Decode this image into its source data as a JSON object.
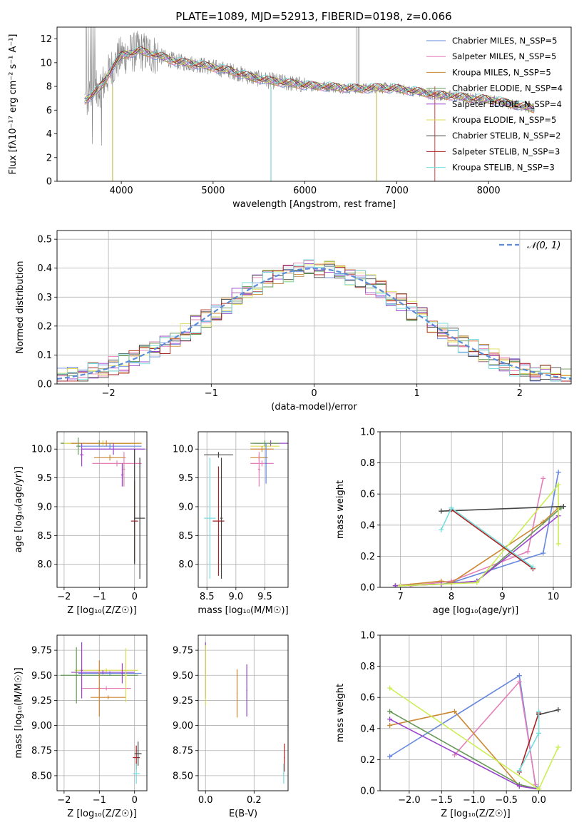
{
  "title": "PLATE=1089, MJD=52913, FIBERID=0198, z=0.066",
  "chart_data": [
    {
      "id": "spectrum",
      "type": "line",
      "xlabel": "wavelength [Angstrom, rest frame]",
      "ylabel": "Flux [fλ10⁻¹⁷ erg cm⁻² s⁻¹ A⁻¹]",
      "xlim": [
        3300,
        8900
      ],
      "ylim": [
        0,
        13
      ],
      "xticks": [
        "4000",
        "5000",
        "6000",
        "7000",
        "8000"
      ],
      "yticks": [
        "0",
        "2",
        "4",
        "6",
        "8",
        "10",
        "12"
      ],
      "grid": false,
      "legend_position": "top-right",
      "continuum": {
        "x": [
          3600,
          3700,
          3800,
          3900,
          4000,
          4200,
          4400,
          4600,
          4800,
          5000,
          5200,
          5400,
          5600,
          5800,
          6000,
          6200,
          6400,
          6600,
          6800,
          7000,
          7200,
          7400,
          7600,
          7800,
          8000,
          8200,
          8400,
          8500
        ],
        "y": [
          6.8,
          7.4,
          8.2,
          9.6,
          10.6,
          11.0,
          10.6,
          10.1,
          9.9,
          9.6,
          9.3,
          8.8,
          8.5,
          8.3,
          8.1,
          8.0,
          7.9,
          7.8,
          7.9,
          7.8,
          7.6,
          7.3,
          7.2,
          7.0,
          6.9,
          6.6,
          6.3,
          6.1
        ]
      },
      "series": [
        {
          "name": "Chabrier MILES, N_SSP=5",
          "color": "#6688dd"
        },
        {
          "name": "Salpeter MILES, N_SSP=5",
          "color": "#e67fb8"
        },
        {
          "name": "Kroupa MILES, N_SSP=5",
          "color": "#cc8833"
        },
        {
          "name": "Chabrier ELODIE, N_SSP=4",
          "color": "#669955"
        },
        {
          "name": "Salpeter ELODIE, N_SSP=4",
          "color": "#9944cc"
        },
        {
          "name": "Kroupa ELODIE, N_SSP=5",
          "color": "#dddd55"
        },
        {
          "name": "Chabrier STELIB, N_SSP=2",
          "color": "#444444"
        },
        {
          "name": "Salpeter STELIB, N_SSP=3",
          "color": "#aa2222"
        },
        {
          "name": "Kroupa STELIB, N_SSP=3",
          "color": "#77dddd"
        }
      ]
    },
    {
      "id": "residuals",
      "type": "histogram",
      "xlabel": "(data-model)/error",
      "ylabel": "Normed distribution",
      "xlim": [
        -2.5,
        2.5
      ],
      "ylim": [
        0,
        0.53
      ],
      "xticks": [
        "−2",
        "−1",
        "0",
        "1",
        "2"
      ],
      "yticks": [
        "0.0",
        "0.1",
        "0.2",
        "0.3",
        "0.4",
        "0.5"
      ],
      "grid": true,
      "legend_position": "top-right",
      "reference_curve": {
        "name": "𝒩(0, 1)",
        "mean": 0,
        "sigma": 1,
        "color": "#5b8bd8"
      },
      "bin_width": 0.1,
      "series_colors": [
        "#6688dd",
        "#e67fb8",
        "#cc8833",
        "#669955",
        "#9944cc",
        "#dddd55",
        "#444444",
        "#aa2222",
        "#77dddd"
      ]
    },
    {
      "id": "age_vs_Z",
      "type": "errorbar",
      "xlabel": "Z [log₁₀(Z/Z☉)]",
      "ylabel": "age  [log₁₀(age/yr)]",
      "xlim": [
        -2.2,
        0.35
      ],
      "ylim": [
        7.6,
        10.3
      ],
      "xticks": [
        "−2",
        "−1",
        "0"
      ],
      "yticks": [
        "8.0",
        "8.5",
        "9.0",
        "9.5",
        "10.0"
      ],
      "grid": true,
      "points": [
        {
          "x": -1.0,
          "y": 10.1,
          "xerr": 1.1,
          "yerr": 0.05,
          "color": "#669955"
        },
        {
          "x": -0.9,
          "y": 10.1,
          "xerr": 1.1,
          "yerr": 0.05,
          "color": "#dddd55"
        },
        {
          "x": -0.8,
          "y": 10.1,
          "xerr": 1.0,
          "yerr": 0.05,
          "color": "#cc8833"
        },
        {
          "x": -0.7,
          "y": 10.05,
          "xerr": 0.9,
          "yerr": 0.05,
          "color": "#6688dd"
        },
        {
          "x": -0.6,
          "y": 10.0,
          "xerr": 0.9,
          "yerr": 0.1,
          "color": "#9944cc"
        },
        {
          "x": -0.7,
          "y": 9.85,
          "xerr": 0.45,
          "yerr": 0.05,
          "color": "#cc8833"
        },
        {
          "x": -0.5,
          "y": 9.75,
          "xerr": 0.7,
          "yerr": 0.05,
          "color": "#e67fb8"
        },
        {
          "x": -1.6,
          "y": 10.05,
          "xerr": 0.05,
          "yerr": 0.15,
          "color": "#669955"
        },
        {
          "x": -1.5,
          "y": 9.9,
          "xerr": 0.05,
          "yerr": 0.2,
          "color": "#9944cc"
        },
        {
          "x": -0.35,
          "y": 9.55,
          "xerr": 0.03,
          "yerr": 0.2,
          "color": "#9944cc"
        },
        {
          "x": -0.3,
          "y": 9.65,
          "xerr": 0.03,
          "yerr": 0.3,
          "color": "#e67fb8"
        },
        {
          "x": 0.0,
          "y": 8.75,
          "xerr": 0.1,
          "yerr": 0.7,
          "color": "#aa2222"
        },
        {
          "x": 0.15,
          "y": 8.8,
          "xerr": 0.15,
          "yerr": 1.05,
          "color": "#444444"
        },
        {
          "x": 0.0,
          "y": 9.0,
          "xerr": 0.02,
          "yerr": 1.0,
          "color": "#444444"
        }
      ]
    },
    {
      "id": "age_vs_mass",
      "type": "errorbar",
      "xlabel": "mass [log₁₀(M/M☉)]",
      "ylabel": "",
      "xlim": [
        8.35,
        9.9
      ],
      "ylim": [
        7.6,
        10.3
      ],
      "xticks": [
        "8.5",
        "9.0",
        "9.5"
      ],
      "yticks": [
        "8.0",
        "8.5",
        "9.0",
        "9.5",
        "10.0"
      ],
      "grid": true,
      "points": [
        {
          "x": 9.6,
          "y": 10.1,
          "xerr": 0.3,
          "yerr": 0.05,
          "color": "#9944cc"
        },
        {
          "x": 9.5,
          "y": 10.05,
          "xerr": 0.25,
          "yerr": 0.05,
          "color": "#dddd55"
        },
        {
          "x": 9.5,
          "y": 10.1,
          "xerr": 0.25,
          "yerr": 0.05,
          "color": "#669955"
        },
        {
          "x": 9.45,
          "y": 10.0,
          "xerr": 0.2,
          "yerr": 0.05,
          "color": "#cc8833"
        },
        {
          "x": 9.4,
          "y": 9.85,
          "xerr": 0.15,
          "yerr": 0.05,
          "color": "#cc8833"
        },
        {
          "x": 9.45,
          "y": 9.75,
          "xerr": 0.2,
          "yerr": 0.05,
          "color": "#e67fb8"
        },
        {
          "x": 9.52,
          "y": 9.75,
          "xerr": 0.02,
          "yerr": 0.35,
          "color": "#6688dd"
        },
        {
          "x": 9.4,
          "y": 9.65,
          "xerr": 0.02,
          "yerr": 0.3,
          "color": "#e67fb8"
        },
        {
          "x": 8.55,
          "y": 8.8,
          "xerr": 0.1,
          "yerr": 1.05,
          "color": "#77dddd"
        },
        {
          "x": 8.7,
          "y": 9.9,
          "xerr": 0.25,
          "yerr": 0.05,
          "color": "#444444"
        },
        {
          "x": 8.7,
          "y": 8.75,
          "xerr": 0.1,
          "yerr": 0.95,
          "color": "#aa2222"
        },
        {
          "x": 8.75,
          "y": 8.8,
          "xerr": 0.02,
          "yerr": 1.05,
          "color": "#444444"
        }
      ]
    },
    {
      "id": "mass_weight_vs_age",
      "type": "line",
      "xlabel": "age  [log₁₀(age/yr)]",
      "ylabel": "mass weight",
      "xlim": [
        6.6,
        10.35
      ],
      "ylim": [
        0,
        1.0
      ],
      "xticks": [
        "7",
        "8",
        "9",
        "10"
      ],
      "yticks": [
        "0.0",
        "0.2",
        "0.4",
        "0.6",
        "0.8",
        "1.0"
      ],
      "grid": true,
      "series": [
        {
          "color": "#6688dd",
          "x": [
            6.9,
            7.8,
            8.0,
            9.8,
            10.1
          ],
          "y": [
            0.01,
            0.02,
            0.03,
            0.22,
            0.74
          ]
        },
        {
          "color": "#e67fb8",
          "x": [
            7.2,
            8.0,
            9.5,
            9.8
          ],
          "y": [
            0.01,
            0.04,
            0.23,
            0.7
          ]
        },
        {
          "color": "#cc8833",
          "x": [
            6.9,
            7.8,
            8.0,
            9.8,
            10.1
          ],
          "y": [
            0.01,
            0.04,
            0.03,
            0.42,
            0.51
          ]
        },
        {
          "color": "#669955",
          "x": [
            6.9,
            7.8,
            8.5,
            10.15
          ],
          "y": [
            0.01,
            0.02,
            0.04,
            0.51
          ]
        },
        {
          "color": "#9944cc",
          "x": [
            6.9,
            7.8,
            8.5,
            10.1
          ],
          "y": [
            0.01,
            0.02,
            0.04,
            0.46
          ]
        },
        {
          "color": "#ccee55",
          "x": [
            7.0,
            8.5,
            10.1,
            10.1
          ],
          "y": [
            0.01,
            0.03,
            0.66,
            0.28
          ]
        },
        {
          "color": "#444444",
          "x": [
            7.8,
            10.2
          ],
          "y": [
            0.49,
            0.52
          ]
        },
        {
          "color": "#aa2222",
          "x": [
            8.0,
            9.6
          ],
          "y": [
            0.5,
            0.12
          ]
        },
        {
          "color": "#77dddd",
          "x": [
            7.8,
            8.0,
            9.6
          ],
          "y": [
            0.37,
            0.51,
            0.13
          ]
        }
      ]
    },
    {
      "id": "mass_vs_Z",
      "type": "errorbar",
      "xlabel": "Z [log₁₀(Z/Z☉)]",
      "ylabel": "mass [log₁₀(M/M☉)]",
      "xlim": [
        -2.2,
        0.35
      ],
      "ylim": [
        8.35,
        9.9
      ],
      "xticks": [
        "−2",
        "−1",
        "0"
      ],
      "yticks": [
        "8.50",
        "8.75",
        "9.00",
        "9.25",
        "9.50",
        "9.75"
      ],
      "grid": true,
      "points": [
        {
          "x": -1.0,
          "y": 9.5,
          "xerr": 1.1,
          "yerr": 0.02,
          "color": "#669955"
        },
        {
          "x": -0.8,
          "y": 9.55,
          "xerr": 0.9,
          "yerr": 0.02,
          "color": "#dddd55"
        },
        {
          "x": -0.7,
          "y": 9.52,
          "xerr": 0.9,
          "yerr": 0.02,
          "color": "#6688dd"
        },
        {
          "x": -0.9,
          "y": 9.53,
          "xerr": 0.9,
          "yerr": 0.02,
          "color": "#9944cc"
        },
        {
          "x": -0.8,
          "y": 9.37,
          "xerr": 0.7,
          "yerr": 0.02,
          "color": "#e67fb8"
        },
        {
          "x": -0.75,
          "y": 9.28,
          "xerr": 0.5,
          "yerr": 0.02,
          "color": "#cc8833"
        },
        {
          "x": -1.65,
          "y": 9.5,
          "xerr": 0.03,
          "yerr": 0.28,
          "color": "#669955"
        },
        {
          "x": -1.5,
          "y": 9.55,
          "xerr": 0.03,
          "yerr": 0.28,
          "color": "#9944cc"
        },
        {
          "x": -1.0,
          "y": 9.37,
          "xerr": 0.03,
          "yerr": 0.28,
          "color": "#cc8833"
        },
        {
          "x": -0.35,
          "y": 9.52,
          "xerr": 0.03,
          "yerr": 0.1,
          "color": "#9944cc"
        },
        {
          "x": -0.25,
          "y": 9.5,
          "xerr": 0.03,
          "yerr": 0.27,
          "color": "#dddd55"
        },
        {
          "x": 0.05,
          "y": 8.68,
          "xerr": 0.1,
          "yerr": 0.12,
          "color": "#aa2222"
        },
        {
          "x": 0.1,
          "y": 8.72,
          "xerr": 0.1,
          "yerr": 0.12,
          "color": "#444444"
        },
        {
          "x": 0.05,
          "y": 8.52,
          "xerr": 0.1,
          "yerr": 0.1,
          "color": "#77dddd"
        }
      ]
    },
    {
      "id": "mass_vs_ebv",
      "type": "errorbar",
      "xlabel": "E(B-V)",
      "ylabel": "",
      "xlim": [
        -0.03,
        0.34
      ],
      "ylim": [
        8.35,
        9.9
      ],
      "xticks": [
        "0.0",
        "0.2"
      ],
      "yticks": [
        "8.50",
        "8.75",
        "9.00",
        "9.25",
        "9.50",
        "9.75"
      ],
      "grid": true,
      "points": [
        {
          "x": 0.0,
          "y": 9.55,
          "xerr": 0.002,
          "yerr": 0.28,
          "color": "#9944cc"
        },
        {
          "x": 0.0,
          "y": 9.5,
          "xerr": 0.002,
          "yerr": 0.3,
          "color": "#dddd55"
        },
        {
          "x": 0.13,
          "y": 9.32,
          "xerr": 0.002,
          "yerr": 0.24,
          "color": "#cc8833"
        },
        {
          "x": 0.17,
          "y": 9.35,
          "xerr": 0.002,
          "yerr": 0.26,
          "color": "#9944cc"
        },
        {
          "x": 0.325,
          "y": 8.68,
          "xerr": 0.002,
          "yerr": 0.14,
          "color": "#aa2222"
        },
        {
          "x": 0.322,
          "y": 8.52,
          "xerr": 0.002,
          "yerr": 0.1,
          "color": "#77dddd"
        }
      ]
    },
    {
      "id": "mass_weight_vs_Z",
      "type": "line",
      "xlabel": "Z [log₁₀(Z/Z☉)]",
      "ylabel": "mass weight",
      "xlim": [
        -2.45,
        0.5
      ],
      "ylim": [
        0,
        1.0
      ],
      "xticks": [
        "−2.0",
        "−1.5",
        "−1.0",
        "−0.5",
        "0.0"
      ],
      "yticks": [
        "0.0",
        "0.2",
        "0.4",
        "0.6",
        "0.8",
        "1.0"
      ],
      "grid": true,
      "series": [
        {
          "color": "#6688dd",
          "x": [
            -2.3,
            -0.3,
            -0.05,
            0.0
          ],
          "y": [
            0.22,
            0.74,
            0.03,
            0.01
          ]
        },
        {
          "color": "#e67fb8",
          "x": [
            -1.3,
            -0.3,
            -0.05
          ],
          "y": [
            0.23,
            0.7,
            0.04
          ]
        },
        {
          "color": "#cc8833",
          "x": [
            -2.3,
            -1.3,
            -0.3,
            0.0
          ],
          "y": [
            0.42,
            0.51,
            0.03,
            0.01
          ]
        },
        {
          "color": "#669955",
          "x": [
            -2.3,
            -0.3,
            0.0
          ],
          "y": [
            0.51,
            0.04,
            0.01
          ]
        },
        {
          "color": "#9944cc",
          "x": [
            -2.3,
            -0.3,
            0.0
          ],
          "y": [
            0.46,
            0.03,
            0.01
          ]
        },
        {
          "color": "#ccee55",
          "x": [
            -2.3,
            0.0,
            0.3
          ],
          "y": [
            0.66,
            0.01,
            0.28
          ]
        },
        {
          "color": "#444444",
          "x": [
            0.0,
            0.3
          ],
          "y": [
            0.49,
            0.52
          ]
        },
        {
          "color": "#aa2222",
          "x": [
            -0.3,
            0.0
          ],
          "y": [
            0.12,
            0.5
          ]
        },
        {
          "color": "#77dddd",
          "x": [
            -0.3,
            0.0,
            0.0
          ],
          "y": [
            0.13,
            0.37,
            0.51
          ]
        }
      ]
    }
  ]
}
